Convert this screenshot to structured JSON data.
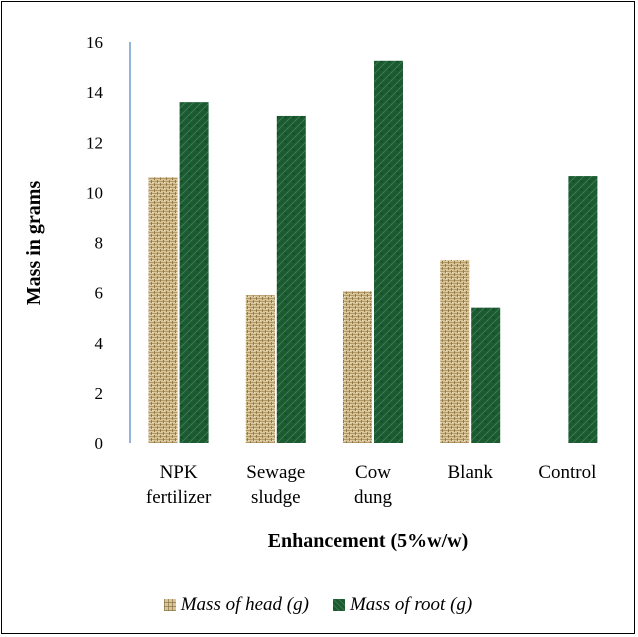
{
  "chart_data": {
    "type": "bar",
    "title": "",
    "xlabel": "Enhancement (5%w/w)",
    "ylabel": "Mass in grams",
    "ylim": [
      0,
      16
    ],
    "yticks": [
      0,
      2,
      4,
      6,
      8,
      10,
      12,
      14,
      16
    ],
    "categories": [
      [
        "NPK",
        "fertilizer"
      ],
      [
        "Sewage",
        "sludge"
      ],
      [
        "Cow",
        "dung"
      ],
      [
        "Blank"
      ],
      [
        "Control"
      ]
    ],
    "series": [
      {
        "name": "Mass of head (g)",
        "color": "#d8c598",
        "values": [
          10.6,
          5.9,
          6.05,
          7.3,
          0
        ]
      },
      {
        "name": "Mass of root (g)",
        "color": "#1c5a32",
        "values": [
          13.6,
          13.05,
          15.25,
          5.4,
          10.65
        ]
      }
    ],
    "grid": false,
    "legend_position": "bottom"
  }
}
